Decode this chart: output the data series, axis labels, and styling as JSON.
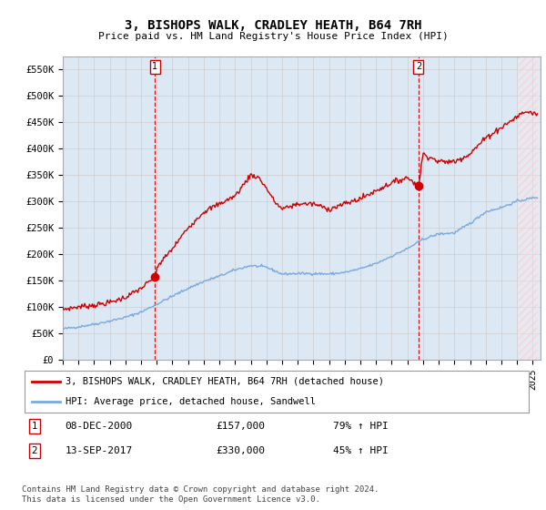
{
  "title": "3, BISHOPS WALK, CRADLEY HEATH, B64 7RH",
  "subtitle": "Price paid vs. HM Land Registry's House Price Index (HPI)",
  "ylim": [
    0,
    575000
  ],
  "yticks": [
    0,
    50000,
    100000,
    150000,
    200000,
    250000,
    300000,
    350000,
    400000,
    450000,
    500000,
    550000
  ],
  "ytick_labels": [
    "£0",
    "£50K",
    "£100K",
    "£150K",
    "£200K",
    "£250K",
    "£300K",
    "£350K",
    "£400K",
    "£450K",
    "£500K",
    "£550K"
  ],
  "xlim_start": 1995.0,
  "xlim_end": 2025.5,
  "grid_color": "#cccccc",
  "bg_color": "#dde8f5",
  "plot_bg": "#ffffff",
  "sale1_x": 2000.92,
  "sale1_y": 157000,
  "sale2_x": 2017.71,
  "sale2_y": 330000,
  "legend_line1": "3, BISHOPS WALK, CRADLEY HEATH, B64 7RH (detached house)",
  "legend_line2": "HPI: Average price, detached house, Sandwell",
  "ann1_label": "08-DEC-2000",
  "ann1_price": "£157,000",
  "ann1_hpi": "79% ↑ HPI",
  "ann2_label": "13-SEP-2017",
  "ann2_price": "£330,000",
  "ann2_hpi": "45% ↑ HPI",
  "footer": "Contains HM Land Registry data © Crown copyright and database right 2024.\nThis data is licensed under the Open Government Licence v3.0.",
  "red_color": "#cc0000",
  "blue_color": "#7aaadd",
  "hpi_anchors_x": [
    1995,
    1996,
    1997,
    1998,
    1999,
    2000,
    2001,
    2002,
    2003,
    2004,
    2005,
    2006,
    2007,
    2008,
    2009,
    2010,
    2011,
    2012,
    2013,
    2014,
    2015,
    2016,
    2017,
    2018,
    2019,
    2020,
    2021,
    2022,
    2023,
    2024,
    2025.3
  ],
  "hpi_anchors_y": [
    58000,
    62000,
    67000,
    73000,
    80000,
    90000,
    105000,
    120000,
    135000,
    148000,
    158000,
    170000,
    178000,
    175000,
    162000,
    163000,
    163000,
    162000,
    165000,
    172000,
    182000,
    196000,
    210000,
    228000,
    238000,
    240000,
    258000,
    280000,
    288000,
    300000,
    308000
  ],
  "prop_anchors_x": [
    1995,
    1996,
    1997,
    1998,
    1999,
    2000,
    2000.92,
    2001,
    2002,
    2003,
    2004,
    2005,
    2006,
    2007,
    2007.5,
    2008,
    2008.5,
    2009,
    2009.5,
    2010,
    2011,
    2012,
    2013,
    2014,
    2015,
    2016,
    2017,
    2017.71,
    2018,
    2019,
    2020,
    2021,
    2022,
    2023,
    2024,
    2024.5,
    2025.3
  ],
  "prop_anchors_y": [
    95000,
    100000,
    103000,
    108000,
    118000,
    135000,
    157000,
    175000,
    210000,
    250000,
    280000,
    295000,
    310000,
    350000,
    345000,
    325000,
    300000,
    285000,
    290000,
    295000,
    295000,
    285000,
    295000,
    305000,
    320000,
    335000,
    345000,
    330000,
    390000,
    375000,
    375000,
    390000,
    420000,
    440000,
    460000,
    470000,
    465000
  ]
}
